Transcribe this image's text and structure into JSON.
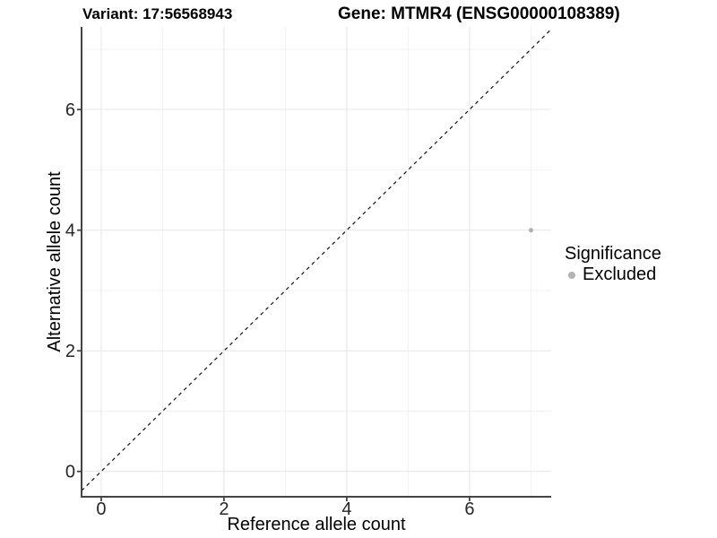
{
  "header": {
    "variant_title": "Variant: 17:56568943",
    "gene_title": "Gene: MTMR4 (ENSG00000108389)"
  },
  "chart_data": {
    "type": "scatter",
    "titles": {
      "left": "Variant: 17:56568943",
      "right": "Gene: MTMR4 (ENSG00000108389)"
    },
    "xlabel": "Reference allele count",
    "ylabel": "Alternative allele count",
    "xlim": [
      -0.32,
      7.33
    ],
    "ylim": [
      -0.42,
      7.37
    ],
    "x_ticks": [
      0,
      2,
      4,
      6
    ],
    "y_ticks": [
      0,
      2,
      4,
      6
    ],
    "x_minor_ticks": [
      1,
      3,
      5,
      7
    ],
    "y_minor_ticks": [
      1,
      3,
      5,
      7
    ],
    "grid": true,
    "identity_line": {
      "style": "dashed",
      "color": "#111111",
      "from": "y=x"
    },
    "series": [
      {
        "name": "Excluded",
        "color": "#b3b3b3",
        "points": [
          {
            "x": 7,
            "y": 4
          }
        ]
      }
    ],
    "legend": {
      "title": "Significance",
      "position": "right",
      "items": [
        {
          "label": "Excluded",
          "color": "#b3b3b3"
        }
      ]
    },
    "colors": {
      "grid_major": "#e6e6e6",
      "grid_minor": "#f2f2f2",
      "axis_line": "#444444",
      "tick_text": "#262626",
      "background": "#ffffff"
    }
  }
}
